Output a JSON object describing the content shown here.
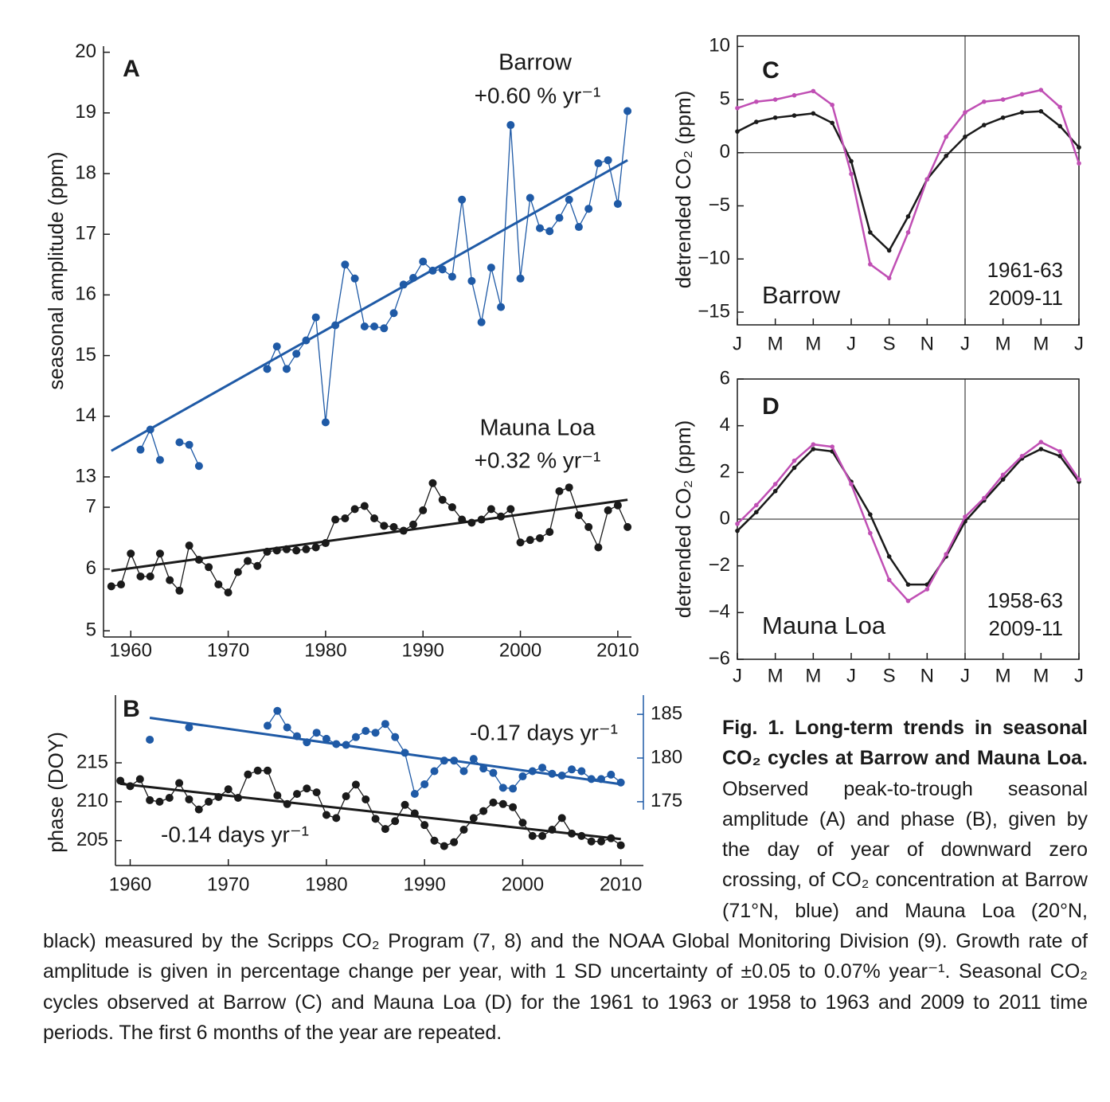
{
  "chart_data": [
    {
      "type": "line",
      "panel": "A",
      "ylabel": "seasonal amplitude (ppm)",
      "frame": "open",
      "y2_side": "left",
      "xlim": [
        1957.2,
        2011.4
      ],
      "xticks": [
        1960,
        1970,
        1980,
        1990,
        2000,
        2010
      ],
      "ylim": [
        4.9,
        7.4
      ],
      "yticks": [
        5,
        6,
        7
      ],
      "y2lim": [
        12.75,
        20.1
      ],
      "y2ticks": [
        13,
        14,
        15,
        16,
        17,
        18,
        19,
        20
      ],
      "series": [
        {
          "name": "Barrow",
          "color": "#1f5aa6",
          "axis": "y2",
          "marker": true,
          "x": [
            1961,
            1962,
            1963,
            1964,
            1965,
            1966,
            1967,
            1968,
            1969,
            1970,
            1971,
            1972,
            1973,
            1974,
            1975,
            1976,
            1977,
            1978,
            1979,
            1980,
            1981,
            1982,
            1983,
            1984,
            1985,
            1986,
            1987,
            1988,
            1989,
            1990,
            1991,
            1992,
            1993,
            1994,
            1995,
            1996,
            1997,
            1998,
            1999,
            2000,
            2001,
            2002,
            2003,
            2004,
            2005,
            2006,
            2007,
            2008,
            2009,
            2010,
            2011
          ],
          "values": [
            13.45,
            13.78,
            13.28,
            null,
            13.57,
            13.53,
            13.18,
            null,
            null,
            null,
            null,
            null,
            null,
            14.78,
            15.15,
            14.78,
            15.03,
            15.25,
            15.63,
            13.9,
            15.5,
            16.5,
            16.27,
            15.48,
            15.48,
            15.45,
            15.7,
            16.17,
            16.28,
            16.55,
            16.4,
            16.42,
            16.3,
            17.57,
            16.23,
            15.55,
            16.45,
            15.8,
            18.8,
            16.27,
            17.6,
            17.1,
            17.05,
            17.27,
            17.57,
            17.12,
            17.42,
            18.17,
            18.22,
            17.5,
            19.03
          ]
        },
        {
          "color": "#1f5aa6",
          "axis": "y2",
          "marker": false,
          "x": [
            1958,
            2011
          ],
          "values": [
            13.43,
            18.22
          ]
        },
        {
          "name": "Mauna Loa",
          "color": "#1a1a1a",
          "marker": true,
          "x": [
            1958,
            1959,
            1960,
            1961,
            1962,
            1963,
            1964,
            1965,
            1966,
            1967,
            1968,
            1969,
            1970,
            1971,
            1972,
            1973,
            1974,
            1975,
            1976,
            1977,
            1978,
            1979,
            1980,
            1981,
            1982,
            1983,
            1984,
            1985,
            1986,
            1987,
            1988,
            1989,
            1990,
            1991,
            1992,
            1993,
            1994,
            1995,
            1996,
            1997,
            1998,
            1999,
            2000,
            2001,
            2002,
            2003,
            2004,
            2005,
            2006,
            2007,
            2008,
            2009,
            2010,
            2011
          ],
          "values": [
            5.72,
            5.75,
            6.25,
            5.88,
            5.88,
            6.25,
            5.82,
            5.65,
            6.38,
            6.15,
            6.03,
            5.75,
            5.62,
            5.95,
            6.13,
            6.05,
            6.28,
            6.3,
            6.32,
            6.3,
            6.32,
            6.35,
            6.42,
            6.8,
            6.82,
            6.97,
            7.02,
            6.82,
            6.7,
            6.68,
            6.62,
            6.72,
            6.95,
            7.39,
            7.12,
            7.0,
            6.8,
            6.75,
            6.8,
            6.97,
            6.85,
            6.97,
            6.43,
            6.47,
            6.5,
            6.6,
            7.26,
            7.32,
            6.87,
            6.68,
            6.35,
            6.95,
            7.03,
            6.68
          ]
        },
        {
          "color": "#1a1a1a",
          "marker": false,
          "x": [
            1958,
            2011
          ],
          "values": [
            5.97,
            7.12
          ]
        }
      ],
      "annotations": [
        {
          "text": "+0.60 % yr⁻¹",
          "color": "#1f5aa6"
        },
        {
          "text": "+0.32 % yr⁻¹",
          "color": "#1a1a1a"
        }
      ]
    },
    {
      "type": "line",
      "panel": "B",
      "ylabel": "phase (DOY)",
      "frame": "open",
      "y2_side": "right",
      "y2_color": "#1f5aa6",
      "xlim": [
        1958.5,
        2012.3
      ],
      "xticks": [
        1960,
        1970,
        1980,
        1990,
        2000,
        2010
      ],
      "ylim": [
        201.8,
        223.7
      ],
      "yticks": [
        205,
        210,
        215
      ],
      "y2lim": [
        167.7,
        187.2
      ],
      "y2ticks": [
        175,
        180,
        185
      ],
      "series": [
        {
          "color": "#1f5aa6",
          "axis": "y2",
          "marker": true,
          "x": [
            1962,
            1963,
            1964,
            1965,
            1966,
            1967,
            1968,
            1969,
            1970,
            1971,
            1972,
            1973,
            1974,
            1975,
            1976,
            1977,
            1978,
            1979,
            1980,
            1981,
            1982,
            1983,
            1984,
            1985,
            1986,
            1987,
            1988,
            1989,
            1990,
            1991,
            1992,
            1993,
            1994,
            1995,
            1996,
            1997,
            1998,
            1999,
            2000,
            2001,
            2002,
            2003,
            2004,
            2005,
            2006,
            2007,
            2008,
            2009,
            2010
          ],
          "values": [
            182.1,
            null,
            null,
            null,
            183.5,
            null,
            null,
            null,
            null,
            null,
            null,
            null,
            183.7,
            185.4,
            183.5,
            182.5,
            181.8,
            182.9,
            182.2,
            181.6,
            181.5,
            182.4,
            183.1,
            182.9,
            183.9,
            182.4,
            180.6,
            175.9,
            177.0,
            178.5,
            179.7,
            179.7,
            178.5,
            179.9,
            178.8,
            178.3,
            176.6,
            176.5,
            177.9,
            178.5,
            178.9,
            178.2,
            178.0,
            178.7,
            178.5,
            177.6,
            177.6,
            178.1,
            177.2
          ]
        },
        {
          "color": "#1f5aa6",
          "axis": "y2",
          "marker": false,
          "x": [
            1962,
            2010
          ],
          "values": [
            184.6,
            177.0
          ]
        },
        {
          "color": "#1a1a1a",
          "marker": true,
          "x": [
            1959,
            1960,
            1961,
            1962,
            1963,
            1964,
            1965,
            1966,
            1967,
            1968,
            1969,
            1970,
            1971,
            1972,
            1973,
            1974,
            1975,
            1976,
            1977,
            1978,
            1979,
            1980,
            1981,
            1982,
            1983,
            1984,
            1985,
            1986,
            1987,
            1988,
            1989,
            1990,
            1991,
            1992,
            1993,
            1994,
            1995,
            1996,
            1997,
            1998,
            1999,
            2000,
            2001,
            2002,
            2003,
            2004,
            2005,
            2006,
            2007,
            2008,
            2009,
            2010
          ],
          "values": [
            212.7,
            212.0,
            212.9,
            210.2,
            210.0,
            210.5,
            212.4,
            210.3,
            209.0,
            210.0,
            210.6,
            211.6,
            210.5,
            213.5,
            214.0,
            214.0,
            210.8,
            209.7,
            211.0,
            211.7,
            211.2,
            208.3,
            207.9,
            210.7,
            212.2,
            210.3,
            207.8,
            206.5,
            207.5,
            209.6,
            208.5,
            207.0,
            205.0,
            204.3,
            204.8,
            206.4,
            207.9,
            208.8,
            209.9,
            209.7,
            209.3,
            207.3,
            205.6,
            205.6,
            206.4,
            207.9,
            205.9,
            205.6,
            204.9,
            204.9,
            205.3,
            204.4
          ]
        },
        {
          "color": "#1a1a1a",
          "marker": false,
          "x": [
            1959,
            2010
          ],
          "values": [
            212.3,
            205.2
          ]
        }
      ],
      "annotations": [
        {
          "text": "-0.17 days yr⁻¹",
          "color": "#1f5aa6"
        },
        {
          "text": "-0.14 days yr⁻¹",
          "color": "#1a1a1a"
        }
      ]
    },
    {
      "type": "line",
      "panel": "C",
      "station": "Barrow",
      "ylabel": "detrended CO₂ (ppm)",
      "frame": "box",
      "legend": "lower right",
      "xlim": [
        0,
        18
      ],
      "xticks": [
        {
          "value": 0,
          "label": "J"
        },
        {
          "value": 2,
          "label": "M"
        },
        {
          "value": 4,
          "label": "M"
        },
        {
          "value": 6,
          "label": "J"
        },
        {
          "value": 8,
          "label": "S"
        },
        {
          "value": 10,
          "label": "N"
        },
        {
          "value": 12,
          "label": "J"
        },
        {
          "value": 14,
          "label": "M"
        },
        {
          "value": 16,
          "label": "M"
        },
        {
          "value": 18,
          "label": "J"
        }
      ],
      "ylim": [
        -16.2,
        11
      ],
      "yticks": [
        {
          "value": -15,
          "label": "−15"
        },
        {
          "value": -10,
          "label": "−10"
        },
        {
          "value": -5,
          "label": "−5"
        },
        0,
        5,
        10
      ],
      "hline": 0,
      "vline": 12,
      "series": [
        {
          "name": "1961-63",
          "color": "#1a1a1a",
          "marker": true,
          "x": [
            0,
            1,
            2,
            3,
            4,
            5,
            6,
            7,
            8,
            9,
            10,
            11,
            12,
            13,
            14,
            15,
            16,
            17,
            18
          ],
          "values": [
            2.0,
            2.9,
            3.3,
            3.5,
            3.7,
            2.8,
            -0.8,
            -7.5,
            -9.2,
            -6.0,
            -2.5,
            -0.3,
            1.5,
            2.6,
            3.3,
            3.8,
            3.9,
            2.5,
            0.5
          ]
        },
        {
          "name": "2009-11",
          "color": "#c04fb4",
          "marker": true,
          "x": [
            0,
            1,
            2,
            3,
            4,
            5,
            6,
            7,
            8,
            9,
            10,
            11,
            12,
            13,
            14,
            15,
            16,
            17,
            18
          ],
          "values": [
            4.2,
            4.8,
            5.0,
            5.4,
            5.8,
            4.5,
            -2.0,
            -10.5,
            -11.8,
            -7.5,
            -2.5,
            1.5,
            3.8,
            4.8,
            5.0,
            5.5,
            5.9,
            4.3,
            -1.0
          ]
        }
      ]
    },
    {
      "type": "line",
      "panel": "D",
      "station": "Mauna Loa",
      "ylabel": "detrended CO₂ (ppm)",
      "frame": "box",
      "legend": "lower right",
      "xlim": [
        0,
        18
      ],
      "xticks": [
        {
          "value": 0,
          "label": "J"
        },
        {
          "value": 2,
          "label": "M"
        },
        {
          "value": 4,
          "label": "M"
        },
        {
          "value": 6,
          "label": "J"
        },
        {
          "value": 8,
          "label": "S"
        },
        {
          "value": 10,
          "label": "N"
        },
        {
          "value": 12,
          "label": "J"
        },
        {
          "value": 14,
          "label": "M"
        },
        {
          "value": 16,
          "label": "M"
        },
        {
          "value": 18,
          "label": "J"
        }
      ],
      "ylim": [
        -6,
        6
      ],
      "yticks": [
        {
          "value": -6,
          "label": "−6"
        },
        {
          "value": -4,
          "label": "−4"
        },
        {
          "value": -2,
          "label": "−2"
        },
        0,
        2,
        4,
        6
      ],
      "hline": 0,
      "vline": 12,
      "series": [
        {
          "name": "1958-63",
          "color": "#1a1a1a",
          "marker": true,
          "x": [
            0,
            1,
            2,
            3,
            4,
            5,
            6,
            7,
            8,
            9,
            10,
            11,
            12,
            13,
            14,
            15,
            16,
            17,
            18
          ],
          "values": [
            -0.5,
            0.3,
            1.2,
            2.2,
            3.0,
            2.9,
            1.6,
            0.2,
            -1.6,
            -2.8,
            -2.8,
            -1.6,
            -0.1,
            0.8,
            1.7,
            2.6,
            3.0,
            2.7,
            1.6
          ]
        },
        {
          "name": "2009-11",
          "color": "#c04fb4",
          "marker": true,
          "x": [
            0,
            1,
            2,
            3,
            4,
            5,
            6,
            7,
            8,
            9,
            10,
            11,
            12,
            13,
            14,
            15,
            16,
            17,
            18
          ],
          "values": [
            -0.2,
            0.6,
            1.5,
            2.5,
            3.2,
            3.1,
            1.5,
            -0.6,
            -2.6,
            -3.5,
            -3.0,
            -1.5,
            0.1,
            0.9,
            1.9,
            2.7,
            3.3,
            2.9,
            1.7
          ]
        }
      ]
    }
  ],
  "caption": {
    "title": "Fig. 1. Long-term trends in seasonal CO₂ cycles at Barrow and Mauna Loa.",
    "body": "Observed peak-to-trough seasonal amplitude (A) and phase (B), given by the day of year of downward zero crossing, of CO₂ concentration at Barrow (71°N, blue) and Mauna Loa (20°N, black) measured by the Scripps CO₂ Program (7, 8) and the NOAA Global Monitoring Division (9). Growth rate of amplitude is given in percentage change per year, with 1 SD uncertainty of ±0.05 to 0.07% year⁻¹. Seasonal CO₂ cycles observed at Barrow (C) and Mauna Loa (D) for the 1961 to 1963 or 1958 to 1963 and 2009 to 2011 time periods. The first 6 months of the year are repeated."
  }
}
